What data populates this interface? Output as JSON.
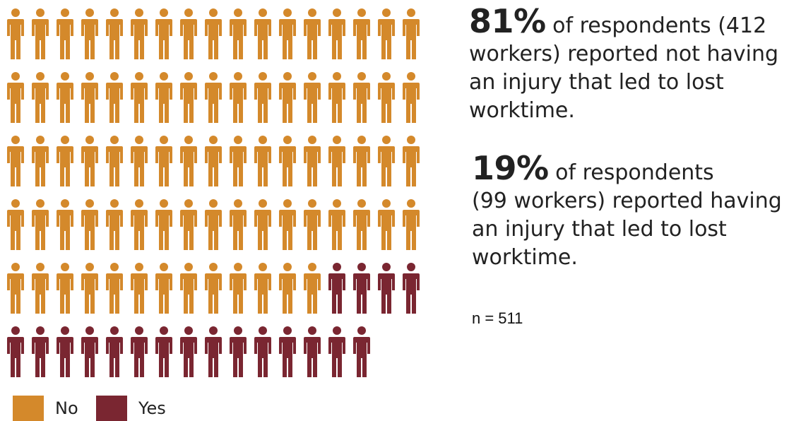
{
  "chart_data": {
    "type": "pictogram",
    "total": 100,
    "per_row": 17,
    "categories": [
      "No",
      "Yes"
    ],
    "values": [
      81,
      19
    ],
    "colors": [
      "#D4892B",
      "#7A2631"
    ],
    "legend": {
      "position": "bottom-left",
      "items": [
        "No",
        "Yes"
      ]
    }
  },
  "stats": {
    "no": {
      "pct": "81%",
      "text": "of respondents (412 workers) reported not having an injury that led to lost worktime."
    },
    "yes": {
      "pct": "19%",
      "text1": "of respondents",
      "text2": "(99 workers) reported having an injury that led to lost worktime."
    }
  },
  "sample_size": "n = 511"
}
